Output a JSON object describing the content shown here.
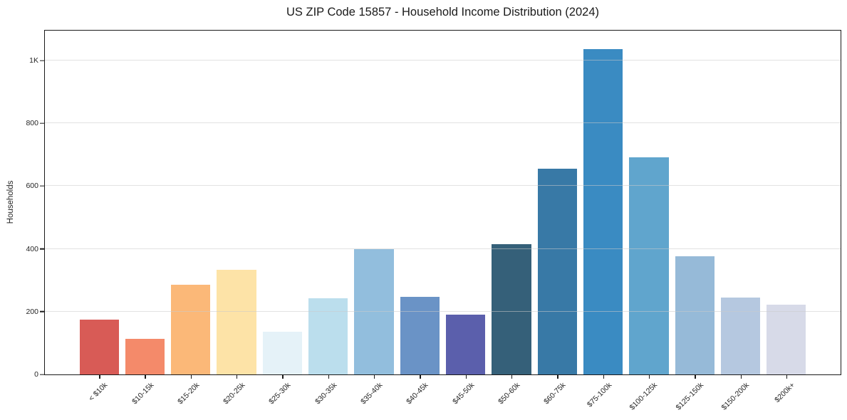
{
  "chart_data": {
    "type": "bar",
    "title": "US ZIP Code 15857 - Household Income Distribution (2024)",
    "xlabel": "",
    "ylabel": "Households",
    "ylim": [
      0,
      1095
    ],
    "grid": "horizontal",
    "legend": "none",
    "categories": [
      "< $10k",
      "$10-15k",
      "$15-20k",
      "$20-25k",
      "$25-30k",
      "$30-35k",
      "$35-40k",
      "$40-45k",
      "$45-50k",
      "$50-60k",
      "$60-75k",
      "$75-100k",
      "$100-125k",
      "$125-150k",
      "$150-200k",
      "$200k+"
    ],
    "values": [
      175,
      113,
      285,
      333,
      136,
      242,
      400,
      248,
      190,
      414,
      655,
      1036,
      691,
      376,
      245,
      222
    ],
    "bar_colors": [
      "#d85b56",
      "#f48a6a",
      "#fbb878",
      "#fde3a7",
      "#e5f2f8",
      "#bbdeed",
      "#92bedd",
      "#6a93c6",
      "#5b5fac",
      "#356079",
      "#3879a6",
      "#3a8bc2",
      "#60a5cd",
      "#96bad8",
      "#b5c8e0",
      "#d7dae8"
    ],
    "yticks": [
      {
        "value": 0,
        "label": "0"
      },
      {
        "value": 200,
        "label": "200"
      },
      {
        "value": 400,
        "label": "400"
      },
      {
        "value": 600,
        "label": "600"
      },
      {
        "value": 800,
        "label": "800"
      },
      {
        "value": 1000,
        "label": "1K"
      }
    ],
    "colors": {
      "background": "#ffffff",
      "axis": "#1a1a1a",
      "grid": "#e8e8e8",
      "text": "#262626"
    }
  }
}
